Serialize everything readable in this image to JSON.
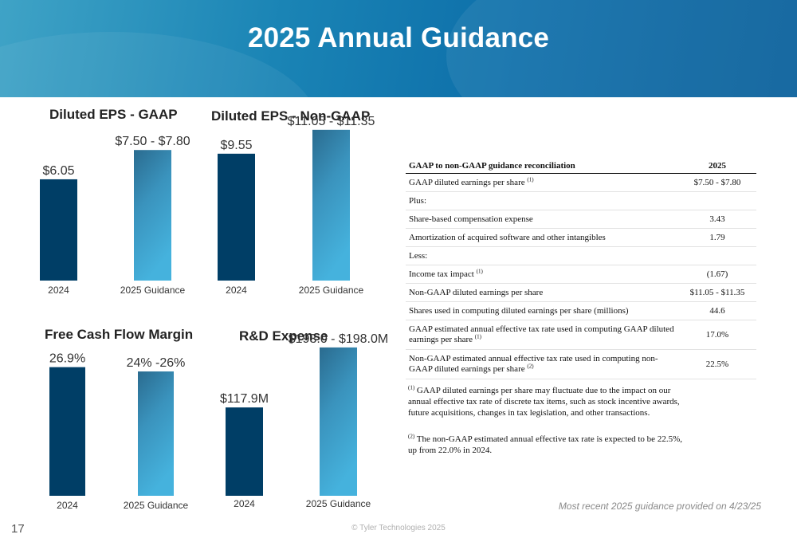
{
  "slide": {
    "title": "2025 Annual Guidance",
    "page_number": "17",
    "copyright": "© Tyler Technologies 2025",
    "source_note": "Most recent 2025 guidance provided on 4/23/25"
  },
  "colors": {
    "actual_bar": "#003e66",
    "guidance_top": "#2a6b8f",
    "guidance_bottom": "#45b2dd",
    "header_start": "#3fa3c6",
    "header_end": "#075e9a"
  },
  "chart_data": [
    {
      "type": "bar",
      "title": "Diluted EPS - GAAP",
      "categories": [
        "2024",
        "2025 Guidance"
      ],
      "values": [
        6.05,
        7.8
      ],
      "range_low": [
        null,
        7.5
      ],
      "value_labels": [
        "$6.05",
        "$7.50 - $7.80"
      ],
      "ylim": [
        0,
        12
      ]
    },
    {
      "type": "bar",
      "title": "Diluted EPS - Non-GAAP",
      "categories": [
        "2024",
        "2025 Guidance"
      ],
      "values": [
        9.55,
        11.35
      ],
      "range_low": [
        null,
        11.05
      ],
      "value_labels": [
        "$9.55",
        "$11.05 - $11.35"
      ],
      "ylim": [
        0,
        12
      ]
    },
    {
      "type": "bar",
      "title": "Free Cash Flow Margin",
      "categories": [
        "2024",
        "2025 Guidance"
      ],
      "values": [
        26.9,
        26
      ],
      "range_low": [
        null,
        24
      ],
      "value_labels": [
        "26.9%",
        "24% -26%"
      ],
      "ylim": [
        0,
        30
      ]
    },
    {
      "type": "bar",
      "title": "R&D Expense",
      "categories": [
        "2024",
        "2025 Guidance"
      ],
      "values": [
        117.9,
        198.0
      ],
      "range_low": [
        null,
        193.0
      ],
      "value_labels": [
        "$117.9M",
        "$193.0 - $198.0M"
      ],
      "ylim": [
        0,
        200
      ]
    }
  ],
  "reconciliation": {
    "header_label": "GAAP to non-GAAP guidance reconciliation",
    "header_year": "2025",
    "rows": [
      {
        "label": "GAAP diluted earnings per share",
        "sup": "(1)",
        "value": "$7.50 - $7.80"
      },
      {
        "label": "Plus:",
        "sup": "",
        "value": ""
      },
      {
        "label": "Share-based compensation expense",
        "sup": "",
        "value": "3.43"
      },
      {
        "label": "Amortization of acquired software and other intangibles",
        "sup": "",
        "value": "1.79"
      },
      {
        "label": "Less:",
        "sup": "",
        "value": ""
      },
      {
        "label": "Income tax impact",
        "sup": "(1)",
        "value": "(1.67)"
      },
      {
        "label": "Non-GAAP diluted earnings per share",
        "sup": "",
        "value": "$11.05 - $11.35"
      },
      {
        "label": "Shares used in computing diluted earnings per share (millions)",
        "sup": "",
        "value": "44.6"
      },
      {
        "label": "GAAP estimated annual effective tax rate used in computing GAAP diluted earnings per share",
        "sup": "(1)",
        "value": "17.0%"
      },
      {
        "label": "Non-GAAP estimated annual effective tax rate used in computing non-GAAP diluted earnings per share",
        "sup": "(2)",
        "value": "22.5%"
      }
    ],
    "footnotes": [
      {
        "mark": "(1)",
        "text": "GAAP diluted earnings per share may fluctuate due to the impact on our annual effective tax rate of discrete tax items, such as stock incentive awards, future acquisitions, changes in tax legislation, and other transactions."
      },
      {
        "mark": "(2)",
        "text": "The non-GAAP estimated annual effective tax rate is expected to be 22.5%, up from 22.0% in 2024."
      }
    ]
  }
}
